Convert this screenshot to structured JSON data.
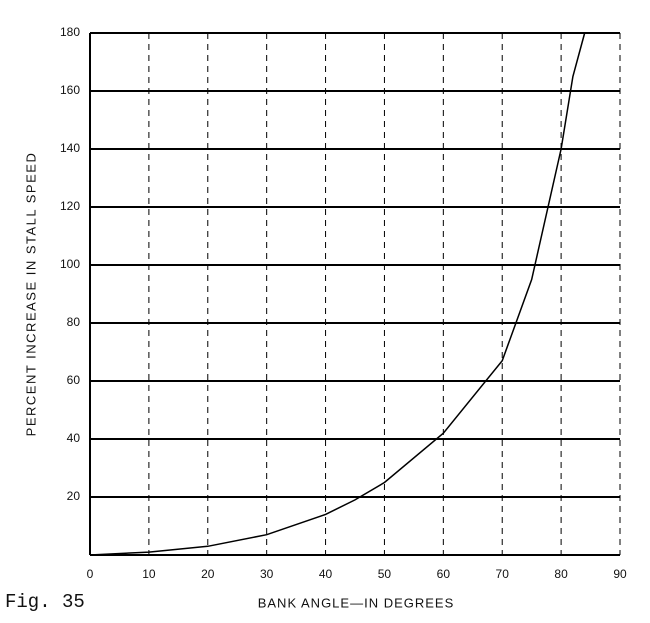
{
  "chart_data": {
    "type": "line",
    "annotation": "Fig. 35",
    "x_label": "BANK ANGLE—IN DEGREES",
    "y_label": "PERCENT INCREASE IN STALL SPEED",
    "x": [
      0,
      10,
      20,
      30,
      40,
      45,
      50,
      60,
      70,
      75,
      80,
      82,
      84
    ],
    "values": [
      0,
      1,
      3,
      7,
      14,
      19,
      25,
      42,
      67,
      95,
      140,
      165,
      180
    ],
    "color": "#000000",
    "xlim": [
      0,
      90
    ],
    "xticks": [
      0,
      10,
      20,
      30,
      40,
      50,
      60,
      70,
      80,
      90
    ],
    "ylim": [
      0,
      180
    ],
    "yticks": [
      20,
      40,
      60,
      80,
      100,
      120,
      140,
      160,
      180
    ],
    "grid": true
  }
}
